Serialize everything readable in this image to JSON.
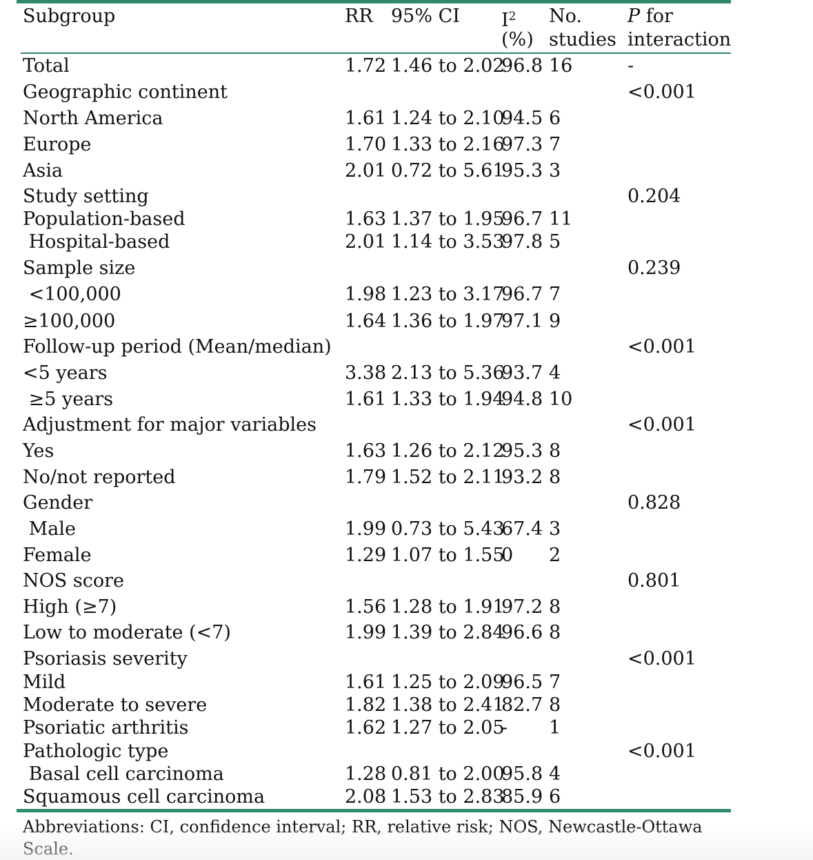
{
  "table": {
    "headers": {
      "subgroup": "Subgroup",
      "rr": "RR",
      "ci": "95% CI",
      "i2_line1": "I",
      "i2_sup": "2",
      "i2_line2": "(%)",
      "no_line1": "No.",
      "no_line2": "studies",
      "p_line1_italic": "P",
      "p_line1_rest": " for",
      "p_line2": "interaction"
    },
    "rows": [
      {
        "label": "Total",
        "rr": "1.72",
        "ci": "1.46 to 2.02",
        "i2": "96.8",
        "n": "16",
        "p": "-"
      },
      {
        "label": "Geographic continent",
        "rr": "",
        "ci": "",
        "i2": "",
        "n": "",
        "p": "<0.001"
      },
      {
        "label": "North America",
        "rr": "1.61",
        "ci": "1.24 to 2.10",
        "i2": "94.5",
        "n": "6",
        "p": ""
      },
      {
        "label": "Europe",
        "rr": "1.70",
        "ci": "1.33 to 2.16",
        "i2": "97.3",
        "n": "7",
        "p": ""
      },
      {
        "label": "Asia",
        "rr": "2.01",
        "ci": "0.72 to 5.61",
        "i2": "95.3",
        "n": "3",
        "p": ""
      },
      {
        "label": "Study setting",
        "rr": "",
        "ci": "",
        "i2": "",
        "n": "",
        "p": "0.204"
      },
      {
        "label": "Population-based",
        "rr": "1.63",
        "ci": "1.37 to 1.95",
        "i2": "96.7",
        "n": "11",
        "p": ""
      },
      {
        "label": " Hospital-based",
        "rr": "2.01",
        "ci": "1.14 to 3.53",
        "i2": "97.8",
        "n": "5",
        "p": ""
      },
      {
        "label": "Sample size",
        "rr": "",
        "ci": "",
        "i2": "",
        "n": "",
        "p": "0.239"
      },
      {
        "label": " <100,000",
        "rr": "1.98",
        "ci": "1.23 to 3.17",
        "i2": "96.7",
        "n": "7",
        "p": ""
      },
      {
        "label": "≥100,000",
        "rr": "1.64",
        "ci": "1.36 to 1.97",
        "i2": "97.1",
        "n": "9",
        "p": ""
      },
      {
        "label": "Follow-up period (Mean/median)",
        "rr": "",
        "ci": "",
        "i2": "",
        "n": "",
        "p": "<0.001"
      },
      {
        "label": "<5 years",
        "rr": "3.38",
        "ci": "2.13 to 5.36",
        "i2": "93.7",
        "n": "4",
        "p": ""
      },
      {
        "label": " ≥5 years",
        "rr": "1.61",
        "ci": "1.33 to 1.94",
        "i2": "94.8",
        "n": "10",
        "p": ""
      },
      {
        "label": "Adjustment for major variables",
        "rr": "",
        "ci": "",
        "i2": "",
        "n": "",
        "p": "<0.001"
      },
      {
        "label": "Yes",
        "rr": "1.63",
        "ci": "1.26 to 2.12",
        "i2": "95.3",
        "n": "8",
        "p": ""
      },
      {
        "label": "No/not reported",
        "rr": "1.79",
        "ci": "1.52 to 2.11",
        "i2": "93.2",
        "n": "8",
        "p": ""
      },
      {
        "label": "Gender",
        "rr": "",
        "ci": "",
        "i2": "",
        "n": "",
        "p": "0.828"
      },
      {
        "label": " Male",
        "rr": "1.99",
        "ci": "0.73 to 5.43",
        "i2": "67.4",
        "n": "3",
        "p": ""
      },
      {
        "label": "Female",
        "rr": "1.29",
        "ci": "1.07 to 1.55",
        "i2": "0",
        "n": "2",
        "p": ""
      },
      {
        "label": "NOS score",
        "rr": "",
        "ci": "",
        "i2": "",
        "n": "",
        "p": "0.801"
      },
      {
        "label": "High (≥7)",
        "rr": "1.56",
        "ci": "1.28 to 1.91",
        "i2": "97.2",
        "n": "8",
        "p": ""
      },
      {
        "label": "Low to moderate (<7)",
        "rr": "1.99",
        "ci": "1.39 to 2.84",
        "i2": "96.6",
        "n": "8",
        "p": ""
      },
      {
        "label": "Psoriasis severity",
        "rr": "",
        "ci": "",
        "i2": "",
        "n": "",
        "p": "<0.001"
      },
      {
        "label": "Mild",
        "rr": "1.61",
        "ci": "1.25 to 2.09",
        "i2": "96.5",
        "n": "7",
        "p": ""
      },
      {
        "label": "Moderate to severe",
        "rr": "1.82",
        "ci": "1.38 to 2.41",
        "i2": "82.7",
        "n": "8",
        "p": ""
      },
      {
        "label": "Psoriatic arthritis",
        "rr": "1.62",
        "ci": "1.27 to 2.05",
        "i2": "-",
        "n": "1",
        "p": ""
      },
      {
        "label": "Pathologic type",
        "rr": "",
        "ci": "",
        "i2": "",
        "n": "",
        "p": "<0.001"
      },
      {
        "label": " Basal cell carcinoma",
        "rr": "1.28",
        "ci": "0.81 to 2.00",
        "i2": "95.8",
        "n": "4",
        "p": ""
      },
      {
        "label": "Squamous cell carcinoma",
        "rr": "2.08",
        "ci": "1.53 to 2.83",
        "i2": "85.9",
        "n": "6",
        "p": ""
      }
    ]
  },
  "footnote": "Abbreviations: CI, confidence interval; RR, relative risk; NOS, Newcastle-Ottawa Scale.",
  "colors": {
    "rule": "#2f8a68",
    "text": "#111111"
  }
}
